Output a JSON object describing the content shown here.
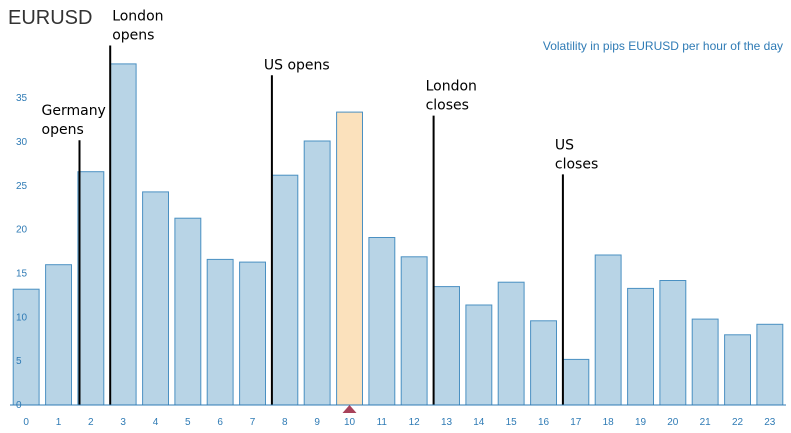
{
  "chart_data": {
    "type": "bar",
    "title": "EURUSD",
    "subtitle": "Volatility in pips EURUSD per hour of the day",
    "xlabel": "",
    "ylabel": "",
    "categories": [
      "0",
      "1",
      "2",
      "3",
      "4",
      "5",
      "6",
      "7",
      "8",
      "9",
      "10",
      "11",
      "12",
      "13",
      "14",
      "15",
      "16",
      "17",
      "18",
      "19",
      "20",
      "21",
      "22",
      "23"
    ],
    "values": [
      13.2,
      16.0,
      26.6,
      38.9,
      24.3,
      21.3,
      16.6,
      16.3,
      26.2,
      30.1,
      33.4,
      19.1,
      16.9,
      13.5,
      11.4,
      14.0,
      9.6,
      5.2,
      17.1,
      13.3,
      14.2,
      9.8,
      8.0,
      9.2
    ],
    "highlight_index": 10,
    "ylim": [
      0,
      39
    ],
    "yticks": [
      0,
      5,
      10,
      15,
      20,
      25,
      30,
      35
    ],
    "grid": false,
    "colors": {
      "bar_fill": "#b8d4e6",
      "bar_stroke": "#4a90c2",
      "highlight_fill": "#fbe1bc",
      "highlight_stroke": "#4a90c2",
      "marker": "#a8425a",
      "axis": "#2f7bb5",
      "tick_text": "#2f7bb5",
      "annotation": "#000000"
    },
    "annotations": [
      {
        "label_lines": [
          "Germany",
          "opens"
        ],
        "x": 1.65,
        "y_top": 30.2
      },
      {
        "label_lines": [
          "London",
          "opens"
        ],
        "x": 2.6,
        "y_top": 41.0
      },
      {
        "label_lines": [
          "US opens"
        ],
        "x": 7.6,
        "y_top": 37.6
      },
      {
        "label_lines": [
          "London",
          "closes"
        ],
        "x": 12.6,
        "y_top": 33.0
      },
      {
        "label_lines": [
          "US",
          "closes"
        ],
        "x": 16.6,
        "y_top": 26.3
      }
    ]
  }
}
